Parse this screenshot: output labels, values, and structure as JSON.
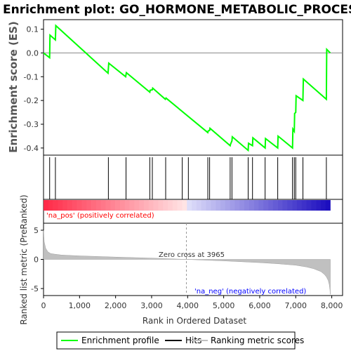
{
  "chart_data": {
    "type": "line",
    "title": "Enrichment plot: GO_HORMONE_METABOLIC_PROCESS",
    "colors": {
      "enrichment": "#00ff00",
      "hits": "#000000",
      "metric_fill": "#c0c0c0",
      "pos_label": "#ff0000",
      "neg_label": "#0000ff",
      "zero_line": "#888888"
    },
    "es_panel": {
      "ylabel": "Enrichment score (ES)",
      "ylim": [
        -0.43,
        0.14
      ],
      "yticks": [
        0.1,
        0.0,
        -0.1,
        -0.2,
        -0.3,
        -0.4
      ],
      "ytick_labels": [
        "0.1",
        "0.0",
        "-0.1",
        "-0.2",
        "-0.3",
        "-0.4"
      ],
      "series": [
        {
          "name": "Enrichment profile",
          "x": [
            0,
            170,
            180,
            330,
            340,
            1790,
            1810,
            2280,
            2300,
            2950,
            2960,
            3020,
            3030,
            3380,
            3400,
            4560,
            4570,
            4610,
            4620,
            5180,
            5190,
            5230,
            5240,
            5680,
            5690,
            5800,
            5810,
            6150,
            6160,
            6500,
            6510,
            6910,
            6920,
            6960,
            6970,
            7000,
            7010,
            7200,
            7210,
            7850,
            7860,
            7960
          ],
          "y": [
            0.0,
            -0.02,
            0.075,
            0.055,
            0.115,
            -0.085,
            -0.043,
            -0.1,
            -0.083,
            -0.165,
            -0.157,
            -0.155,
            -0.148,
            -0.195,
            -0.19,
            -0.335,
            -0.328,
            -0.326,
            -0.317,
            -0.39,
            -0.384,
            -0.37,
            -0.353,
            -0.41,
            -0.38,
            -0.39,
            -0.357,
            -0.4,
            -0.36,
            -0.4,
            -0.35,
            -0.4,
            -0.32,
            -0.33,
            -0.255,
            -0.25,
            -0.18,
            -0.2,
            -0.11,
            -0.195,
            0.015,
            0.0
          ]
        }
      ]
    },
    "hits": [
      170,
      330,
      1800,
      2290,
      2950,
      3020,
      3390,
      3850,
      4020,
      4560,
      4610,
      5180,
      5230,
      5680,
      5800,
      6150,
      6500,
      6910,
      6960,
      7000,
      7200,
      7850
    ],
    "heatmap_bar": {
      "label_pos": "'na_pos' (positively correlated)",
      "label_neg": "'na_neg' (negatively correlated)"
    },
    "metric_panel": {
      "ylabel": "Ranked list metric (PreRanked)",
      "ylim": [
        -6.2,
        6.2
      ],
      "yticks": [
        5,
        0,
        -5
      ],
      "ytick_labels": [
        "5",
        "0",
        "-5"
      ],
      "zero_cross_label": "Zero cross at 3965",
      "zero_cross": 3965,
      "metric_profile": {
        "x": [
          0,
          20,
          60,
          120,
          200,
          300,
          500,
          1000,
          2000,
          3000,
          3965,
          5000,
          6000,
          6500,
          7000,
          7300,
          7500,
          7700,
          7800,
          7850,
          7900,
          7930,
          7950,
          7960
        ],
        "y": [
          5.0,
          3.0,
          1.9,
          1.3,
          1.0,
          0.9,
          0.75,
          0.6,
          0.4,
          0.22,
          0.0,
          -0.25,
          -0.55,
          -0.75,
          -1.0,
          -1.3,
          -1.6,
          -2.1,
          -2.6,
          -3.0,
          -3.6,
          -4.3,
          -5.2,
          -6.0
        ]
      }
    },
    "xaxis": {
      "xlabel": "Rank in Ordered Dataset",
      "xlim": [
        0,
        8300
      ],
      "xticks": [
        0,
        1000,
        2000,
        3000,
        4000,
        5000,
        6000,
        7000,
        8000
      ],
      "xtick_labels": [
        "0",
        "1,000",
        "2,000",
        "3,000",
        "4,000",
        "5,000",
        "6,000",
        "7,000",
        "8,000"
      ],
      "n_items": 7960
    },
    "legend": {
      "placement": "bottom",
      "entries": [
        {
          "label": "Enrichment profile",
          "color": "#00ff00"
        },
        {
          "label": "Hits",
          "color": "#000000"
        },
        {
          "label": "Ranking metric scores",
          "color": "#c0c0c0"
        }
      ]
    }
  }
}
